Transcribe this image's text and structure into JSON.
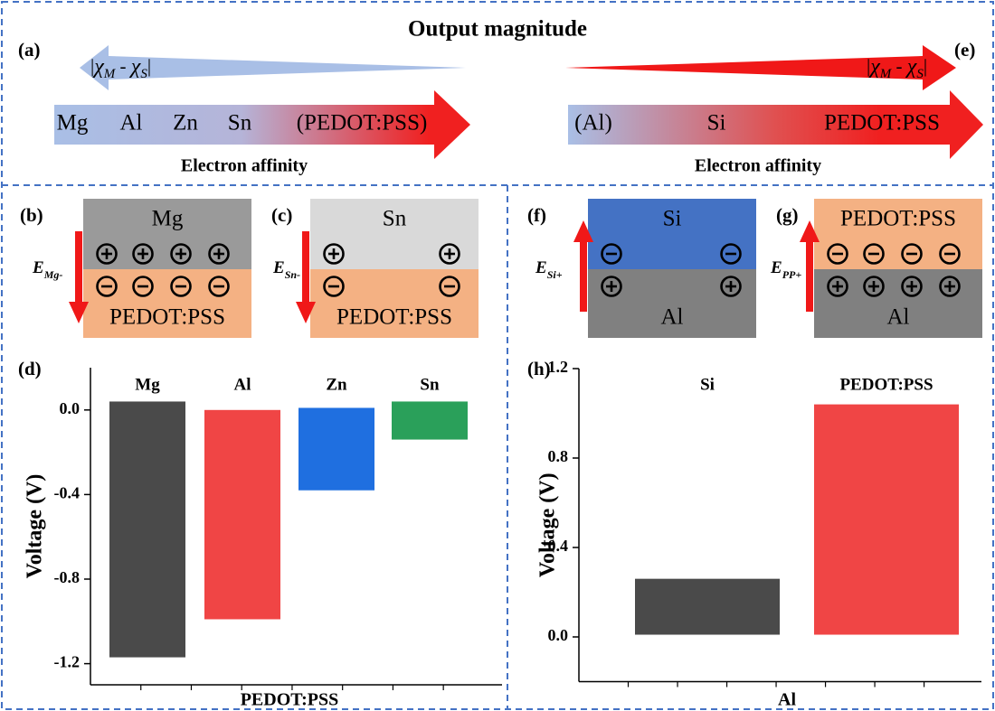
{
  "title": "Output magnitude",
  "panel_a": {
    "label": "(a)",
    "affinity_diff": [
      "|",
      "χ",
      "M",
      " - ",
      "χ",
      "S",
      "|"
    ],
    "series": [
      "Mg",
      "Al",
      "Zn",
      "Sn",
      "(PEDOT:PSS)"
    ],
    "axis_label": "Electron affinity"
  },
  "panel_e": {
    "label": "(e)",
    "affinity_diff": [
      "|",
      "χ",
      "M",
      " - ",
      "χ",
      "S",
      "|"
    ],
    "series": [
      "(Al)",
      "Si",
      "PEDOT:PSS"
    ],
    "axis_label": "Electron affinity"
  },
  "panel_b": {
    "label": "(b)",
    "top": "Mg",
    "bottom": "PEDOT:PSS",
    "field": [
      "E",
      "Mg-"
    ]
  },
  "panel_c": {
    "label": "(c)",
    "top": "Sn",
    "bottom": "PEDOT:PSS",
    "field": [
      "E",
      "Sn-"
    ]
  },
  "panel_f": {
    "label": "(f)",
    "top": "Si",
    "bottom": "Al",
    "field": [
      "E",
      "Si+"
    ]
  },
  "panel_g": {
    "label": "(g)",
    "top": "PEDOT:PSS",
    "bottom": "Al",
    "field": [
      "E",
      "PP+"
    ]
  },
  "chart_data": [
    {
      "type": "range",
      "panel_label": "(d)",
      "categories": [
        "Mg",
        "Al",
        "Zn",
        "Sn"
      ],
      "low": [
        -1.17,
        -0.99,
        -0.38,
        -0.14
      ],
      "high": [
        0.04,
        0.0,
        0.01,
        0.04
      ],
      "colors": [
        "#4a4a4a",
        "#f04545",
        "#1f6fe0",
        "#2aa05a"
      ],
      "ylim": [
        -1.3,
        0.2
      ],
      "yticks": [
        -1.2,
        -0.8,
        -0.4,
        {
          "value": 0,
          "label": "0.0"
        }
      ],
      "y_label": "Voltage (V)",
      "x_label": "PEDOT:PSS"
    },
    {
      "type": "range",
      "panel_label": "(h)",
      "categories": [
        "Si",
        "PEDOT:PSS"
      ],
      "low": [
        0.01,
        0.01
      ],
      "high": [
        0.26,
        1.04
      ],
      "colors": [
        "#4a4a4a",
        "#f04545"
      ],
      "ylim": [
        -0.2,
        1.2
      ],
      "yticks": [
        {
          "value": 0,
          "label": "0.0"
        },
        0.4,
        0.8,
        1.2
      ],
      "y_label": "Voltage (V)",
      "x_label": "Al"
    }
  ]
}
